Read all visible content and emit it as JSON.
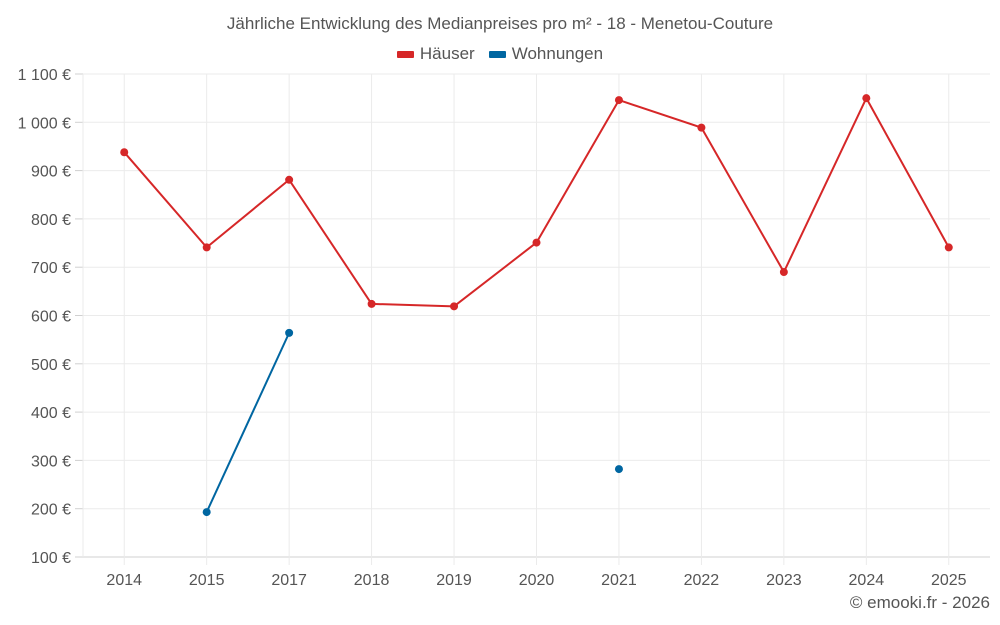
{
  "chart_data": {
    "type": "line",
    "title": "Jährliche Entwicklung des Medianpreises pro m² - 18 - Menetou-Couture",
    "xlabel": "",
    "ylabel": "",
    "categories": [
      "2014",
      "2015",
      "2017",
      "2018",
      "2019",
      "2020",
      "2021",
      "2022",
      "2023",
      "2024",
      "2025"
    ],
    "series": [
      {
        "name": "Häuser",
        "color": "#d62728",
        "values": [
          938,
          741,
          881,
          624,
          619,
          751,
          1046,
          989,
          690,
          1050,
          741
        ]
      },
      {
        "name": "Wohnungen",
        "color": "#0066a1",
        "values": [
          null,
          193,
          564,
          null,
          null,
          null,
          282,
          null,
          null,
          null,
          null
        ]
      }
    ],
    "ylim": [
      100,
      1100
    ],
    "yticks": [
      100,
      200,
      300,
      400,
      500,
      600,
      700,
      800,
      900,
      1000,
      1100
    ],
    "ytick_labels": [
      "100 €",
      "200 €",
      "300 €",
      "400 €",
      "500 €",
      "600 €",
      "700 €",
      "800 €",
      "900 €",
      "1 000 €",
      "1 100 €"
    ],
    "grid": true,
    "legend_position": "top"
  },
  "legend": [
    {
      "label": "Häuser",
      "color": "#d62728"
    },
    {
      "label": "Wohnungen",
      "color": "#0066a1"
    }
  ],
  "footer": "© emooki.fr - 2026"
}
